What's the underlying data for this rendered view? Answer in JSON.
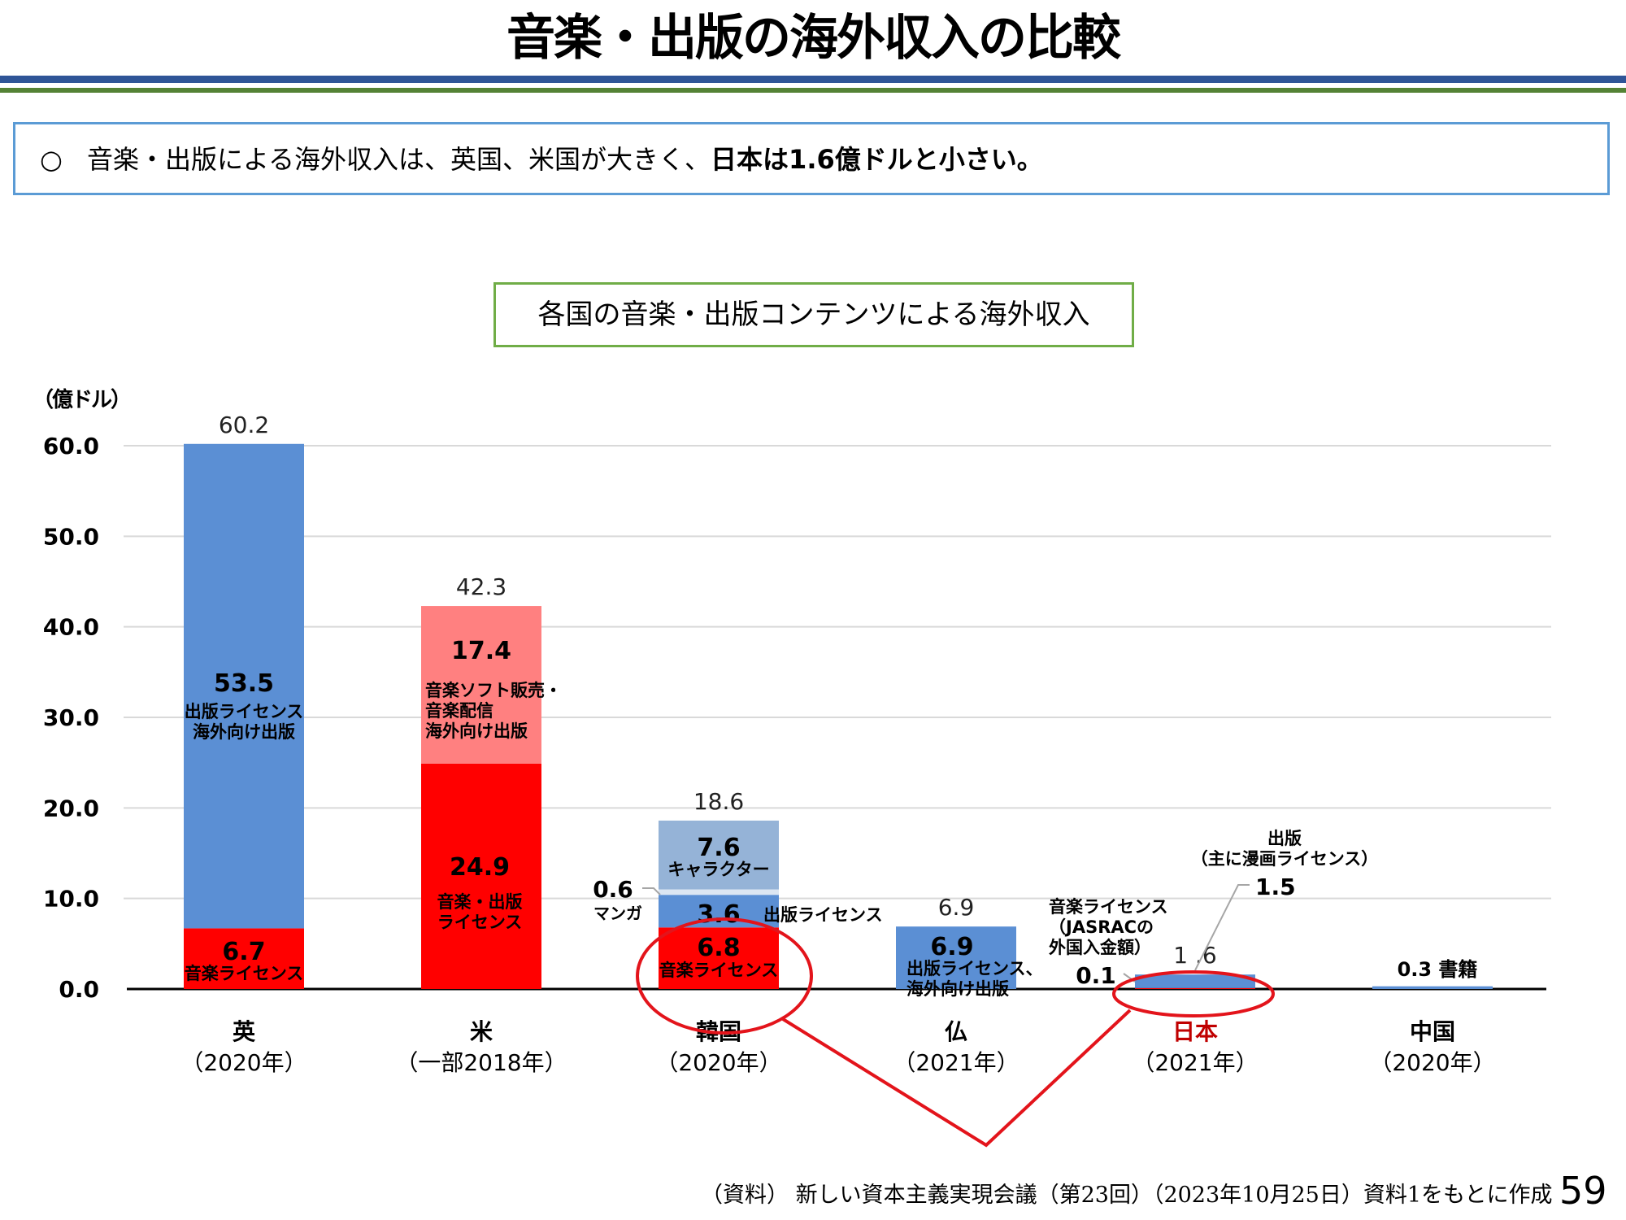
{
  "header": {
    "title": "音楽・出版の海外収入の比較"
  },
  "summary": {
    "bullet": "○",
    "text": "音楽・出版による海外収入は、英国、米国が大きく、",
    "emphasis": "日本は1.6億ドルと小さい。"
  },
  "chart_title": "各国の音楽・出版コンテンツによる海外収入",
  "colors": {
    "music_red": "#ff0000",
    "music_pink": "#ff8080",
    "publishing_blue": "#5b8fd4",
    "character_lightblue": "#95b3d7",
    "manga_pale": "#dce6f2",
    "highlight_red": "#e3141b",
    "japan_label": "#c00000",
    "band_blue": "#2f5597",
    "band_green": "#548235"
  },
  "chart_data": {
    "type": "bar",
    "stacked": true,
    "title": "各国の音楽・出版コンテンツによる海外収入",
    "ylabel": "（億ドル）",
    "xlabel": "",
    "ylim": [
      0,
      60
    ],
    "yticks": [
      "0.0",
      "10.0",
      "20.0",
      "30.0",
      "40.0",
      "50.0",
      "60.0"
    ],
    "ytick_values": [
      0,
      10,
      20,
      30,
      40,
      50,
      60
    ],
    "grid": true,
    "legend": "none",
    "categories": [
      {
        "name": "英",
        "year": "（2020年）",
        "highlight": false
      },
      {
        "name": "米",
        "year": "（一部2018年）",
        "highlight": false
      },
      {
        "name": "韓国",
        "year": "（2020年）",
        "highlight": false
      },
      {
        "name": "仏",
        "year": "（2021年）",
        "highlight": false
      },
      {
        "name": "日本",
        "year": "（2021年）",
        "highlight": true
      },
      {
        "name": "中国",
        "year": "（2020年）",
        "highlight": false
      }
    ],
    "totals": [
      "60.2",
      "42.3",
      "18.6",
      "6.9",
      "1 .6",
      ""
    ],
    "total_values": [
      60.2,
      42.3,
      18.6,
      6.9,
      1.6,
      0.3
    ],
    "bars": [
      {
        "country": "英",
        "segments": [
          {
            "value": 6.7,
            "label": "6.7",
            "desc": [
              "音楽ライセンス"
            ],
            "color": "music_red"
          },
          {
            "value": 53.5,
            "label": "53.5",
            "desc": [
              "出版ライセンス",
              "海外向け出版"
            ],
            "color": "publishing_blue"
          }
        ]
      },
      {
        "country": "米",
        "segments": [
          {
            "value": 24.9,
            "label": "24.9",
            "desc": [
              "音楽・出版",
              "ライセンス"
            ],
            "color": "music_red"
          },
          {
            "value": 17.4,
            "label": "17.4",
            "desc": [
              "音楽ソフト販売・",
              "音楽配信",
              "海外向け出版"
            ],
            "color": "music_pink"
          }
        ]
      },
      {
        "country": "韓国",
        "segments": [
          {
            "value": 6.8,
            "label": "6.8",
            "desc": [
              "音楽ライセンス"
            ],
            "color": "music_red"
          },
          {
            "value": 3.6,
            "label": "3.6",
            "desc": [
              "出版ライセンス"
            ],
            "color": "publishing_blue"
          },
          {
            "value": 0.6,
            "label": "0.6",
            "desc": [
              "マンガ"
            ],
            "color": "manga_pale"
          },
          {
            "value": 7.6,
            "label": "7.6",
            "desc": [
              "キャラクター"
            ],
            "color": "character_lightblue"
          }
        ]
      },
      {
        "country": "仏",
        "segments": [
          {
            "value": 6.9,
            "label": "6.9",
            "desc": [
              "出版ライセンス、",
              "海外向け出版"
            ],
            "color": "publishing_blue"
          }
        ]
      },
      {
        "country": "日本",
        "segments": [
          {
            "value": 0.1,
            "label": "0.1",
            "desc": [
              "音楽ライセンス",
              "（JASRACの",
              "外国入金額）"
            ],
            "color": "music_red"
          },
          {
            "value": 1.5,
            "label": "1.5",
            "desc": [
              "出版",
              "（主に漫画ライセンス）"
            ],
            "color": "publishing_blue"
          }
        ]
      },
      {
        "country": "中国",
        "segments": [
          {
            "value": 0.3,
            "label": "0.3 書籍",
            "desc": [],
            "color": "publishing_blue"
          }
        ]
      }
    ]
  },
  "footnote": "（資料） 新しい資本主義実現会議（第23回）（2023年10月25日）資料1をもとに作成",
  "page_number": "59"
}
